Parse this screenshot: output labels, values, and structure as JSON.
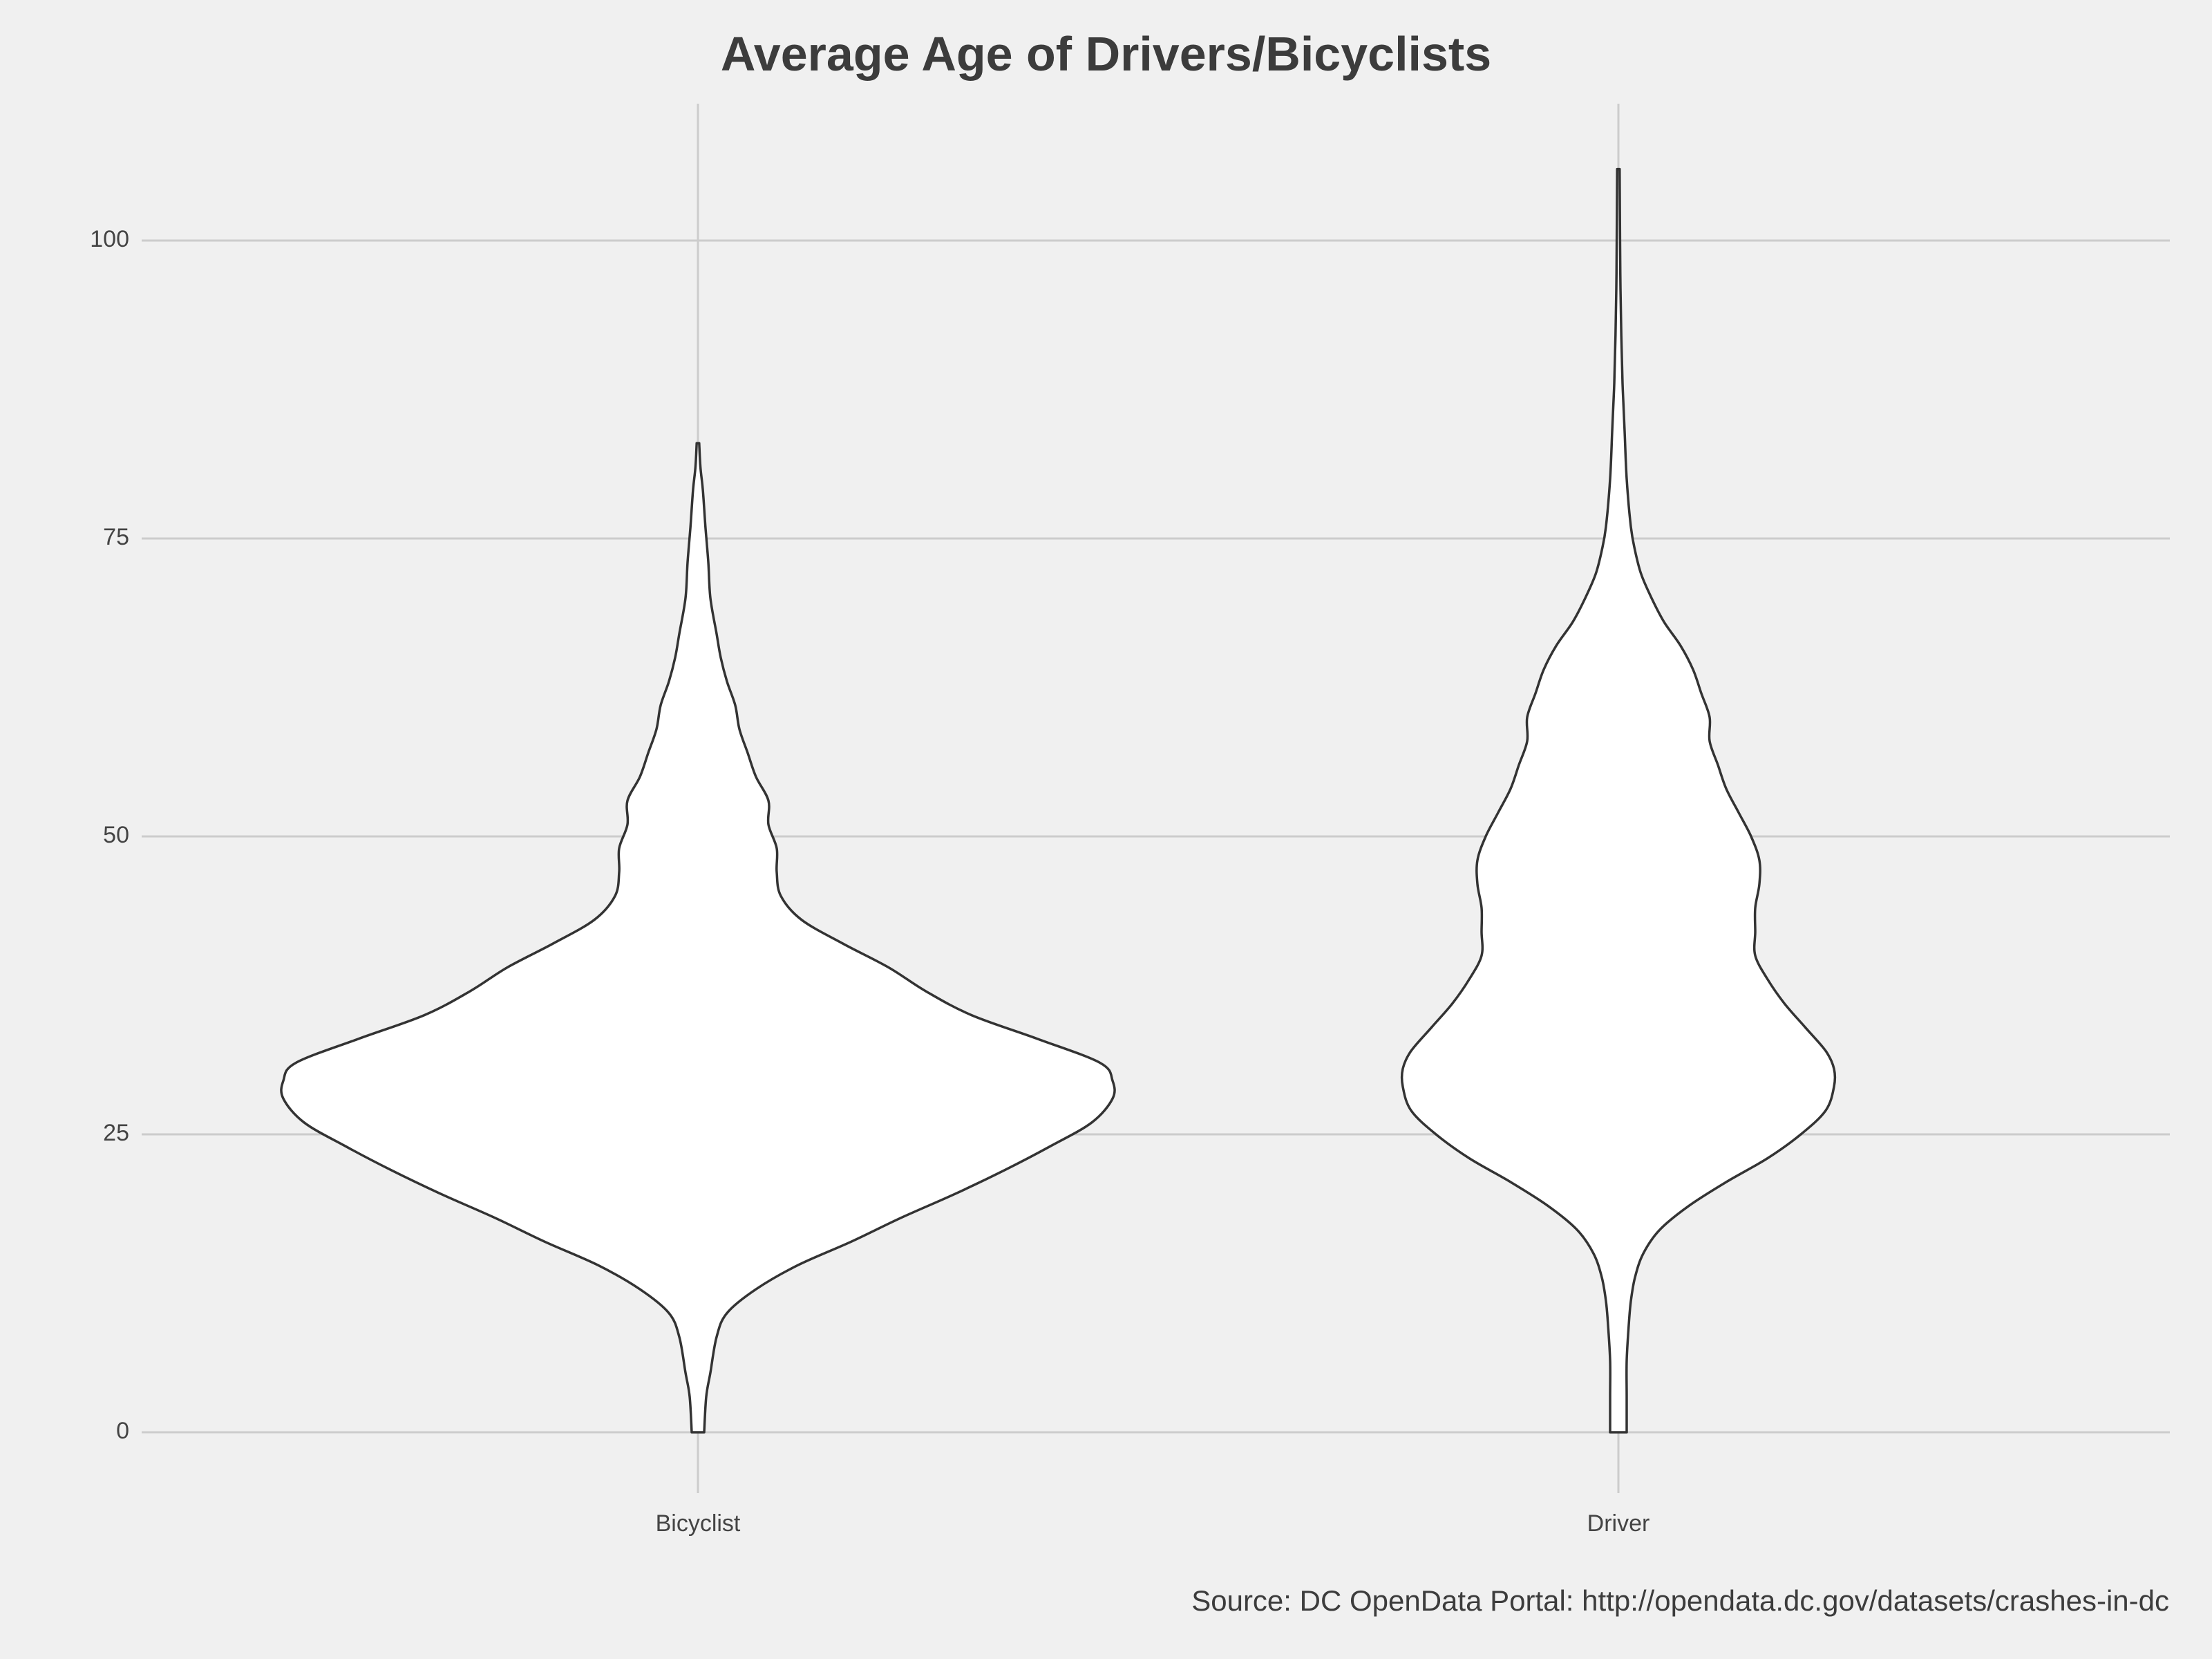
{
  "chart_data": {
    "type": "violin",
    "title": "Average Age of Drivers/Bicyclists",
    "xlabel": "",
    "ylabel": "",
    "categories": [
      "Bicyclist",
      "Driver"
    ],
    "ylim": [
      0,
      110
    ],
    "yticks": [
      0,
      25,
      50,
      75,
      100
    ],
    "grid": true,
    "legend": "none",
    "colors": {
      "fill": "#ffffff",
      "stroke": "#333333",
      "grid": "#cccccc",
      "background": "#f0f0f0"
    },
    "series": [
      {
        "category": "Bicyclist",
        "min": 0,
        "max": 83,
        "density": [
          [
            0,
            0.015
          ],
          [
            3,
            0.02
          ],
          [
            5,
            0.03
          ],
          [
            8,
            0.045
          ],
          [
            10,
            0.07
          ],
          [
            12,
            0.14
          ],
          [
            14,
            0.24
          ],
          [
            16,
            0.37
          ],
          [
            18,
            0.49
          ],
          [
            20,
            0.62
          ],
          [
            22,
            0.74
          ],
          [
            24,
            0.85
          ],
          [
            26,
            0.95
          ],
          [
            28,
            1.0
          ],
          [
            29.5,
            1.0
          ],
          [
            31,
            0.97
          ],
          [
            33,
            0.82
          ],
          [
            35,
            0.66
          ],
          [
            37,
            0.55
          ],
          [
            39,
            0.46
          ],
          [
            41,
            0.35
          ],
          [
            43,
            0.25
          ],
          [
            45,
            0.2
          ],
          [
            47,
            0.19
          ],
          [
            49,
            0.19
          ],
          [
            51,
            0.17
          ],
          [
            53,
            0.17
          ],
          [
            55,
            0.14
          ],
          [
            57,
            0.12
          ],
          [
            59,
            0.1
          ],
          [
            61,
            0.09
          ],
          [
            63,
            0.07
          ],
          [
            65,
            0.055
          ],
          [
            67,
            0.045
          ],
          [
            70,
            0.03
          ],
          [
            73,
            0.025
          ],
          [
            76,
            0.018
          ],
          [
            79,
            0.012
          ],
          [
            81,
            0.006
          ],
          [
            83,
            0.003
          ]
        ]
      },
      {
        "category": "Driver",
        "min": 0,
        "max": 106,
        "density": [
          [
            0,
            0.02
          ],
          [
            3,
            0.02
          ],
          [
            6,
            0.02
          ],
          [
            9,
            0.025
          ],
          [
            11,
            0.03
          ],
          [
            13,
            0.04
          ],
          [
            15,
            0.06
          ],
          [
            17,
            0.1
          ],
          [
            19,
            0.17
          ],
          [
            21,
            0.26
          ],
          [
            23,
            0.36
          ],
          [
            25,
            0.44
          ],
          [
            27,
            0.5
          ],
          [
            29,
            0.52
          ],
          [
            30.5,
            0.52
          ],
          [
            32,
            0.5
          ],
          [
            34,
            0.45
          ],
          [
            36,
            0.4
          ],
          [
            38,
            0.36
          ],
          [
            40,
            0.33
          ],
          [
            42,
            0.33
          ],
          [
            44,
            0.33
          ],
          [
            46,
            0.34
          ],
          [
            48,
            0.34
          ],
          [
            50,
            0.32
          ],
          [
            52,
            0.29
          ],
          [
            54,
            0.26
          ],
          [
            56,
            0.24
          ],
          [
            58,
            0.22
          ],
          [
            60,
            0.22
          ],
          [
            62,
            0.2
          ],
          [
            64,
            0.18
          ],
          [
            66,
            0.15
          ],
          [
            68,
            0.11
          ],
          [
            70,
            0.08
          ],
          [
            72,
            0.055
          ],
          [
            74,
            0.04
          ],
          [
            76,
            0.03
          ],
          [
            80,
            0.02
          ],
          [
            84,
            0.015
          ],
          [
            88,
            0.01
          ],
          [
            92,
            0.007
          ],
          [
            96,
            0.005
          ],
          [
            100,
            0.004
          ],
          [
            106,
            0.003
          ]
        ]
      }
    ],
    "source": "Source: DC OpenData Portal: http://opendata.dc.gov/datasets/crashes-in-dc"
  }
}
